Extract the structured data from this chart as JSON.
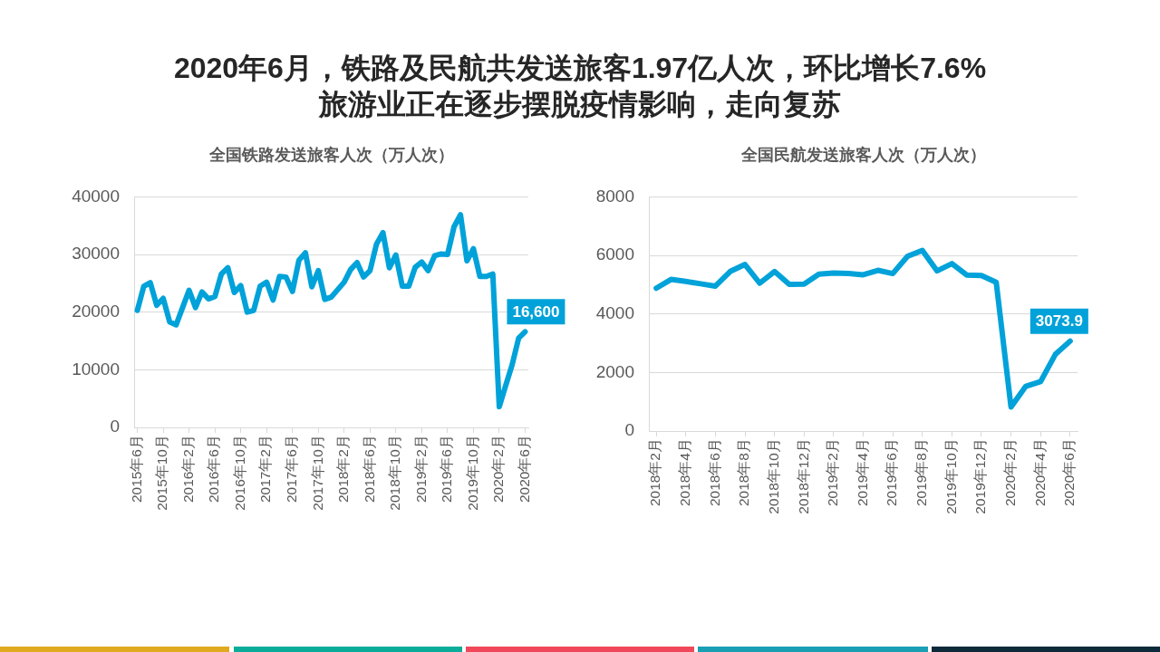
{
  "chart_data": [
    {
      "type": "other",
      "title": "2020年6月，铁路及民航共发送旅客1.97亿人次，环比增长7.6%",
      "subtitle": "旅游业正在逐步摆脱疫情影响，走向复苏"
    },
    {
      "type": "line",
      "title": "全国铁路发送旅客人次（万人次）",
      "categories": [
        "2015年6月",
        null,
        null,
        null,
        "2015年10月",
        null,
        null,
        null,
        "2016年2月",
        null,
        null,
        null,
        "2016年6月",
        null,
        null,
        null,
        "2016年10月",
        null,
        null,
        null,
        "2017年2月",
        null,
        null,
        null,
        "2017年6月",
        null,
        null,
        null,
        "2017年10月",
        null,
        null,
        null,
        "2018年2月",
        null,
        null,
        null,
        "2018年6月",
        null,
        null,
        null,
        "2018年10月",
        null,
        null,
        null,
        "2019年2月",
        null,
        null,
        null,
        "2019年6月",
        null,
        null,
        null,
        "2019年10月",
        null,
        null,
        null,
        "2020年2月",
        null,
        null,
        null,
        "2020年6月"
      ],
      "series": [
        {
          "color": "#00a2d9",
          "values": [
            20300,
            24500,
            25100,
            21200,
            22400,
            18300,
            17800,
            20800,
            23800,
            20800,
            23500,
            22300,
            22700,
            26600,
            27700,
            23400,
            24600,
            20000,
            20300,
            24500,
            25200,
            22100,
            26200,
            26100,
            23600,
            29000,
            30300,
            24400,
            27200,
            22200,
            22600,
            23900,
            25200,
            27400,
            28600,
            26100,
            27200,
            31800,
            33800,
            27700,
            29900,
            24500,
            24500,
            27800,
            28700,
            27200,
            29800,
            30100,
            30000,
            34800,
            36900,
            28900,
            31000,
            26200,
            26200,
            26600,
            3600,
            7300,
            10900,
            15500,
            16600
          ],
          "value_labels": [
            null,
            null,
            null,
            null,
            null,
            null,
            null,
            null,
            null,
            null,
            null,
            null,
            null,
            null,
            null,
            null,
            null,
            null,
            null,
            null,
            null,
            null,
            null,
            null,
            null,
            null,
            null,
            null,
            null,
            null,
            null,
            null,
            null,
            null,
            null,
            null,
            null,
            null,
            null,
            null,
            null,
            null,
            null,
            null,
            null,
            null,
            null,
            null,
            null,
            null,
            null,
            null,
            null,
            null,
            null,
            null,
            null,
            null,
            null,
            null,
            "16,600"
          ]
        }
      ],
      "ylim": [
        0,
        40000
      ],
      "yticks": [
        0,
        10000,
        20000,
        30000,
        40000
      ],
      "grid": "y",
      "marker": "none",
      "line_style": "solid"
    },
    {
      "type": "line",
      "title": "全国民航发送旅客人次（万人次）",
      "categories": [
        "2018年2月",
        null,
        "2018年4月",
        null,
        "2018年6月",
        null,
        "2018年8月",
        null,
        "2018年10月",
        null,
        "2018年12月",
        null,
        "2019年2月",
        null,
        "2019年4月",
        null,
        "2019年6月",
        null,
        "2019年8月",
        null,
        "2019年10月",
        null,
        "2019年12月",
        null,
        "2020年2月",
        null,
        "2020年4月",
        null,
        "2020年6月"
      ],
      "series": [
        {
          "color": "#00a2d9",
          "values": [
            4880,
            5180,
            5110,
            5030,
            4950,
            5450,
            5690,
            5050,
            5450,
            5010,
            5020,
            5360,
            5400,
            5380,
            5340,
            5490,
            5380,
            5970,
            6170,
            5470,
            5720,
            5330,
            5310,
            5080,
            820,
            1530,
            1690,
            2620,
            3073.9
          ],
          "value_labels": [
            null,
            null,
            null,
            null,
            null,
            null,
            null,
            null,
            null,
            null,
            null,
            null,
            null,
            null,
            null,
            null,
            null,
            null,
            null,
            null,
            null,
            null,
            null,
            null,
            null,
            null,
            null,
            null,
            "3073.9"
          ]
        }
      ],
      "ylim": [
        0,
        8000
      ],
      "yticks": [
        0,
        2000,
        4000,
        6000,
        8000
      ],
      "grid": "y",
      "marker": "none",
      "line_style": "solid"
    }
  ]
}
